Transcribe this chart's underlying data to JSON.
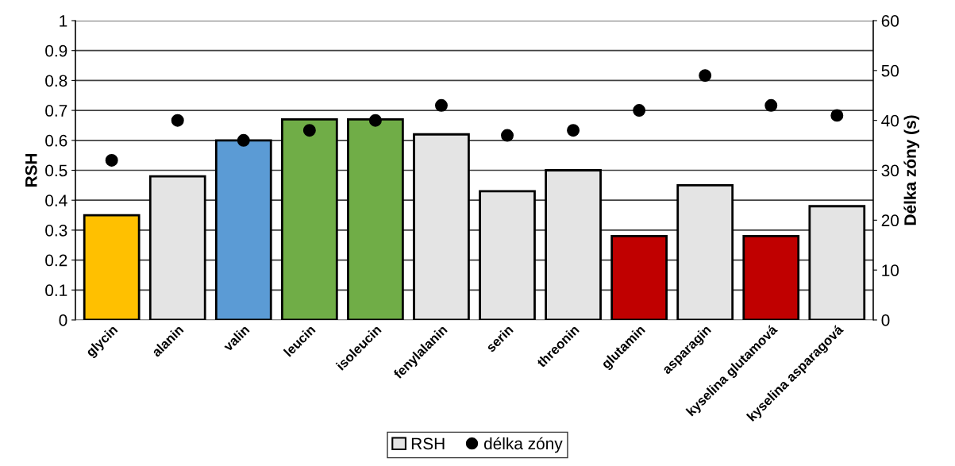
{
  "chart_data": {
    "type": "bar",
    "ylabel": "RSH",
    "y2label": "Délka zóny (s)",
    "categories": [
      "glycin",
      "alanin",
      "valin",
      "leucin",
      "isoleucin",
      "fenylalanin",
      "serin",
      "threonin",
      "glutamin",
      "asparagin",
      "kyselina glutamová",
      "kyselina asparagová"
    ],
    "series": [
      {
        "name": "RSH",
        "color": "#e4e4e4",
        "colors": [
          "#ffc000",
          "#e4e4e4",
          "#5b9bd5",
          "#70ad47",
          "#70ad47",
          "#e4e4e4",
          "#e4e4e4",
          "#e4e4e4",
          "#c00000",
          "#e4e4e4",
          "#c00000",
          "#e4e4e4"
        ],
        "values": [
          0.35,
          0.48,
          0.6,
          0.67,
          0.67,
          0.62,
          0.43,
          0.5,
          0.28,
          0.45,
          0.28,
          0.38
        ]
      },
      {
        "name": "délka zóny",
        "type": "scatter",
        "axis": "y2",
        "color": "#000000",
        "values": [
          32,
          40,
          36,
          38,
          40,
          43,
          37,
          38,
          42,
          49,
          43,
          41
        ]
      }
    ],
    "ylim": [
      0,
      1
    ],
    "yticks": [
      0,
      0.1,
      0.2,
      0.3,
      0.4,
      0.5,
      0.6,
      0.7,
      0.8,
      0.9,
      1
    ],
    "y2lim": [
      0,
      60
    ],
    "y2ticks": [
      0,
      10,
      20,
      30,
      40,
      50,
      60
    ],
    "grid": "y",
    "legend": "bottom",
    "marker": "circle"
  }
}
